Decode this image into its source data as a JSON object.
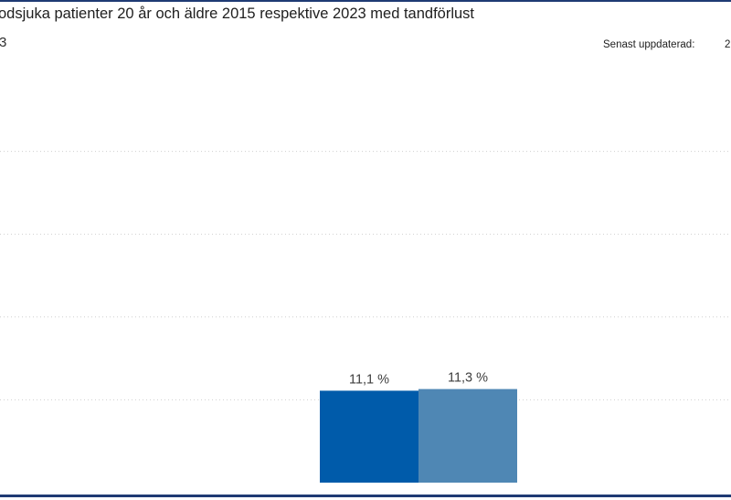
{
  "header": {
    "title": "odsjuka patienter 20 år och äldre 2015 respektive 2023 med tandförlust",
    "subtitle": "3",
    "updated_label": "Senast uppdaterad:",
    "updated_value": "2"
  },
  "colors": {
    "series_2015": "#005baa",
    "series_2023": "#4f87b4",
    "rule": "#1f3a73",
    "gridline": "#cfcfcf"
  },
  "chart_data": {
    "type": "bar",
    "categories": [
      ""
    ],
    "series": [
      {
        "values": [
          11.1
        ],
        "color": "#005baa",
        "label": "11,1 %"
      },
      {
        "values": [
          11.3
        ],
        "color": "#4f87b4",
        "label": "11,3 %"
      }
    ],
    "ylim": [
      0,
      50
    ],
    "grid": true,
    "title": "",
    "xlabel": "",
    "ylabel": ""
  }
}
